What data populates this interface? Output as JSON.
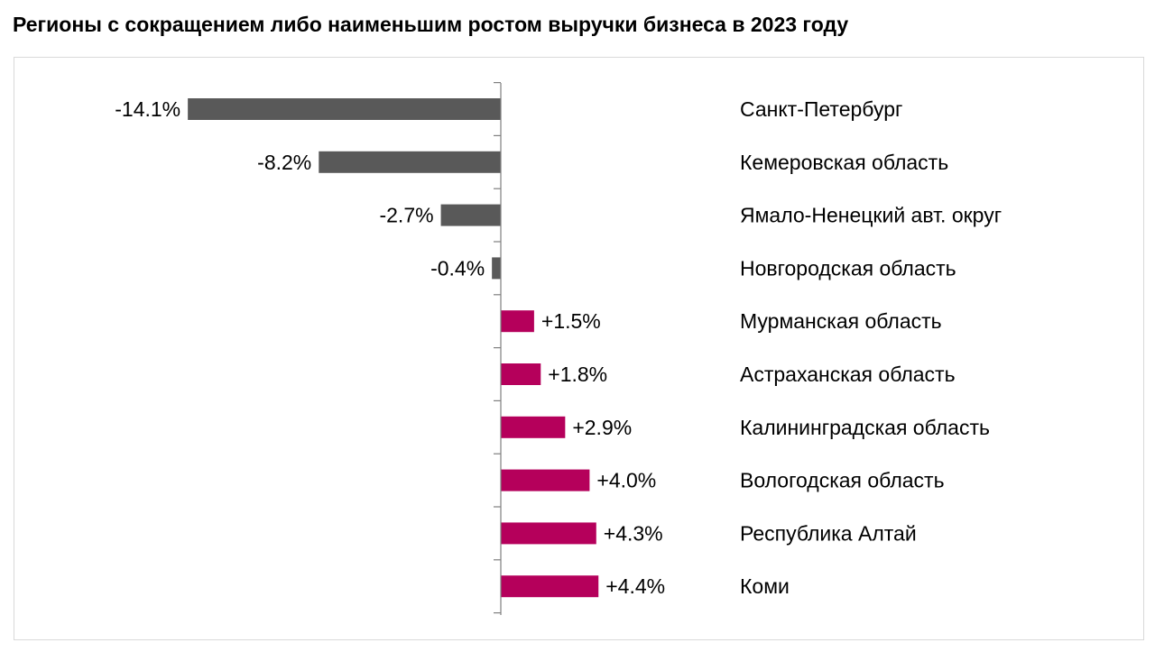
{
  "chart_data": {
    "type": "bar",
    "orientation": "horizontal",
    "title": "Регионы с сокращением либо наименьшим ростом выручки бизнеса в 2023 году",
    "categories": [
      "Санкт-Петербург",
      "Кемеровская область",
      "Ямало-Ненецкий авт. округ",
      "Новгородская область",
      "Мурманская область",
      "Астраханская область",
      "Калининградская область",
      "Вологодская область",
      "Республика Алтай",
      "Коми"
    ],
    "values": [
      -14.1,
      -8.2,
      -2.7,
      -0.4,
      1.5,
      1.8,
      2.9,
      4.0,
      4.3,
      4.4
    ],
    "value_labels": [
      "-14.1%",
      "-8.2%",
      "-2.7%",
      "-0.4%",
      "+1.5%",
      "+1.8%",
      "+2.9%",
      "+4.0%",
      "+4.3%",
      "+4.4%"
    ],
    "colors": {
      "negative": "#595959",
      "positive": "#b5005b"
    },
    "grid": false,
    "legend": "none"
  }
}
